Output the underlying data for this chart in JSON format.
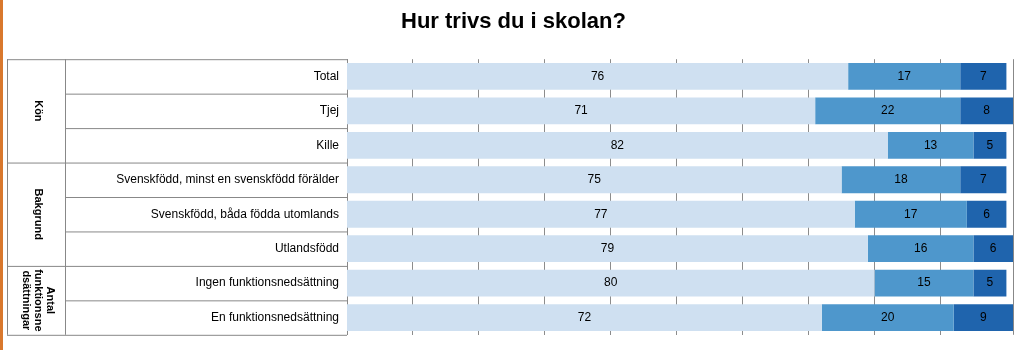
{
  "chart_data": {
    "type": "bar",
    "orientation": "horizontal",
    "stacked": true,
    "title": "Hur trivs du i skolan?",
    "categories": [
      "Total",
      "Tjej",
      "Kille",
      "Svenskfödd, minst en svenskfödd förälder",
      "Svenskfödd, båda födda utomlands",
      "Utlandsfödd",
      "Ingen funktionsnedsättning",
      "En funktionsnedsättning"
    ],
    "series": [
      {
        "color": "#cfe0f1",
        "values": [
          76,
          71,
          82,
          75,
          77,
          79,
          80,
          72
        ]
      },
      {
        "color": "#4e97cc",
        "values": [
          17,
          22,
          13,
          18,
          17,
          16,
          15,
          20
        ]
      },
      {
        "color": "#1f64ad",
        "values": [
          7,
          8,
          5,
          7,
          6,
          6,
          5,
          9
        ]
      }
    ],
    "xlim": [
      0,
      101
    ],
    "xticks": [
      {
        "value": 10,
        "label": null
      },
      {
        "value": 20,
        "label": null
      },
      {
        "value": 30,
        "label": null
      },
      {
        "value": 40,
        "label": null
      },
      {
        "value": 50,
        "label": null
      },
      {
        "value": 60,
        "label": null
      },
      {
        "value": 70,
        "label": null
      },
      {
        "value": 80,
        "label": null
      },
      {
        "value": 90,
        "label": null
      }
    ],
    "tick_labels": "y",
    "grid": "x",
    "data_labels": true,
    "annotations": [
      "Kön",
      "Bakgrund",
      "Antal funktionsnedsättningar"
    ]
  }
}
